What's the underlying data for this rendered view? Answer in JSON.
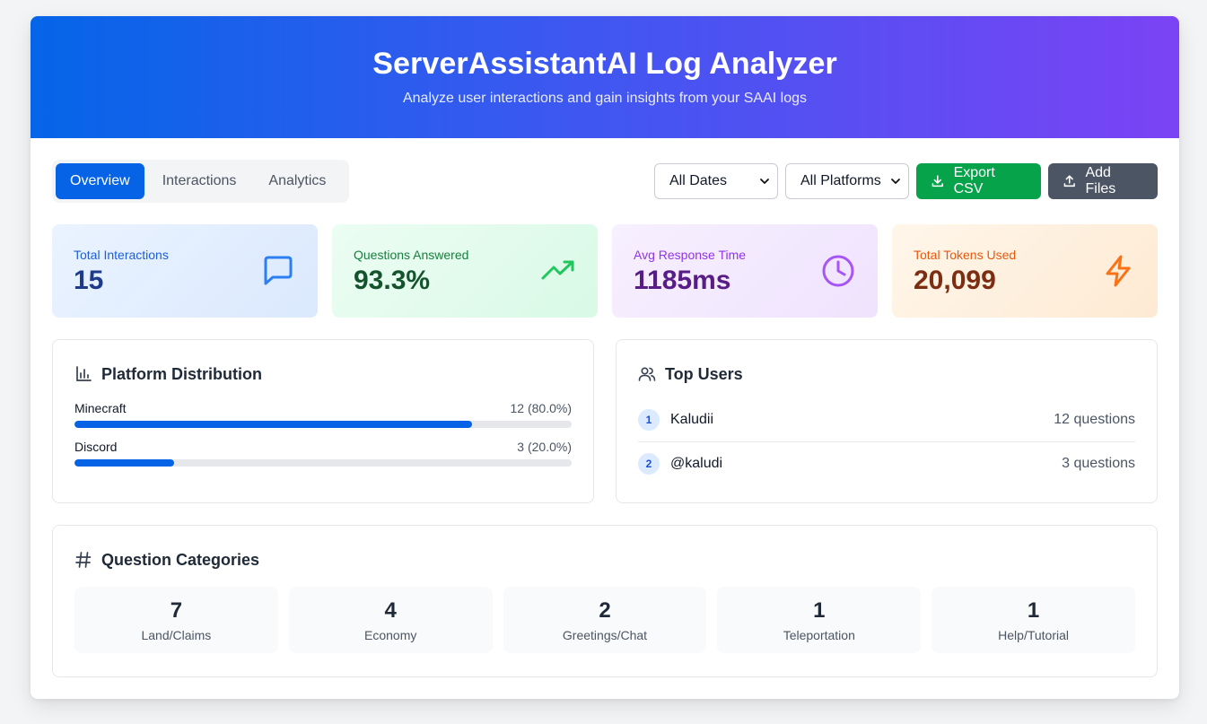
{
  "header": {
    "title": "ServerAssistantAI Log Analyzer",
    "subtitle": "Analyze user interactions and gain insights from your SAAI logs"
  },
  "tabs": [
    {
      "label": "Overview",
      "active": true
    },
    {
      "label": "Interactions",
      "active": false
    },
    {
      "label": "Analytics",
      "active": false
    }
  ],
  "filters": {
    "dates_selected": "All Dates",
    "platforms_selected": "All Platforms"
  },
  "actions": {
    "export_label": "Export CSV",
    "add_files_label": "Add Files"
  },
  "stats": [
    {
      "label": "Total Interactions",
      "value": "15",
      "icon": "message-icon",
      "color": "#2b7ff0"
    },
    {
      "label": "Questions Answered",
      "value": "93.3%",
      "icon": "trending-up-icon",
      "color": "#22c55e"
    },
    {
      "label": "Avg Response Time",
      "value": "1185ms",
      "icon": "clock-icon",
      "color": "#a855f7"
    },
    {
      "label": "Total Tokens Used",
      "value": "20,099",
      "icon": "lightning-icon",
      "color": "#f97316"
    }
  ],
  "platform_distribution": {
    "title": "Platform Distribution",
    "items": [
      {
        "name": "Minecraft",
        "count": "12 (80.0%)",
        "fraction": 0.8
      },
      {
        "name": "Discord",
        "count": "3 (20.0%)",
        "fraction": 0.2
      }
    ]
  },
  "top_users": {
    "title": "Top Users",
    "items": [
      {
        "rank": "1",
        "name": "Kaludii",
        "questions": "12 questions"
      },
      {
        "rank": "2",
        "name": "@kaludi",
        "questions": "3 questions"
      }
    ]
  },
  "question_categories": {
    "title": "Question Categories",
    "items": [
      {
        "count": "7",
        "name": "Land/Claims"
      },
      {
        "count": "4",
        "name": "Economy"
      },
      {
        "count": "2",
        "name": "Greetings/Chat"
      },
      {
        "count": "1",
        "name": "Teleportation"
      },
      {
        "count": "1",
        "name": "Help/Tutorial"
      }
    ]
  }
}
